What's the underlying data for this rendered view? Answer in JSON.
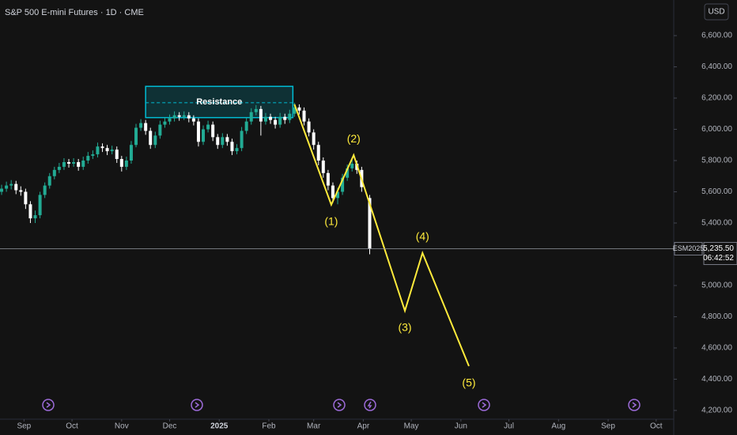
{
  "chart_data": {
    "type": "candlestick",
    "title": "S&P 500 E-mini Futures · 1D · CME",
    "currency": "USD",
    "symbol": "ESM2025",
    "countdown": "06:42:52",
    "last_price": 5235.5,
    "last_price_label": "5,235.50",
    "up_color": "#22ab94",
    "down_color": "#ffffff",
    "xlim": [
      -15,
      405
    ],
    "xticks": [
      {
        "value": 0,
        "label": "Sep"
      },
      {
        "value": 30,
        "label": "Oct"
      },
      {
        "value": 61,
        "label": "Nov"
      },
      {
        "value": 91,
        "label": "Dec"
      },
      {
        "value": 122,
        "label": "2025"
      },
      {
        "value": 153,
        "label": "Feb"
      },
      {
        "value": 181,
        "label": "Mar"
      },
      {
        "value": 212,
        "label": "Apr"
      },
      {
        "value": 242,
        "label": "May"
      },
      {
        "value": 273,
        "label": "Jun"
      },
      {
        "value": 303,
        "label": "Jul"
      },
      {
        "value": 334,
        "label": "Aug"
      },
      {
        "value": 365,
        "label": "Sep"
      },
      {
        "value": 395,
        "label": "Oct"
      }
    ],
    "ylim": [
      4144,
      6828
    ],
    "yticks": [
      {
        "value": 4200,
        "label": "4,200.00"
      },
      {
        "value": 4400,
        "label": "4,400.00"
      },
      {
        "value": 4600,
        "label": "4,600.00"
      },
      {
        "value": 4800,
        "label": "4,800.00"
      },
      {
        "value": 5000,
        "label": "5,000.00"
      },
      {
        "value": 5400,
        "label": "5,400.00"
      },
      {
        "value": 5600,
        "label": "5,600.00"
      },
      {
        "value": 5800,
        "label": "5,800.00"
      },
      {
        "value": 6000,
        "label": "6,000.00"
      },
      {
        "value": 6200,
        "label": "6,200.00"
      },
      {
        "value": 6400,
        "label": "6,400.00"
      },
      {
        "value": 6600,
        "label": "6,600.00"
      }
    ],
    "candles": {
      "x": [
        -14,
        -11,
        -8,
        -5,
        -2,
        1,
        4,
        7,
        10,
        13,
        16,
        19,
        22,
        25,
        28,
        31,
        34,
        37,
        40,
        43,
        46,
        49,
        52,
        55,
        58,
        61,
        64,
        67,
        70,
        73,
        76,
        79,
        82,
        85,
        88,
        91,
        94,
        97,
        100,
        103,
        106,
        109,
        112,
        115,
        118,
        121,
        124,
        127,
        130,
        133,
        136,
        139,
        142,
        145,
        148,
        151,
        154,
        157,
        160,
        163,
        166,
        169,
        172,
        175,
        178,
        181,
        184,
        187,
        190,
        193,
        196,
        199,
        202,
        205,
        208,
        211,
        216
      ],
      "open": [
        5600,
        5620,
        5640,
        5650,
        5610,
        5600,
        5520,
        5430,
        5450,
        5580,
        5640,
        5700,
        5740,
        5760,
        5790,
        5780,
        5790,
        5760,
        5800,
        5830,
        5840,
        5890,
        5880,
        5860,
        5870,
        5810,
        5760,
        5800,
        5900,
        6010,
        6040,
        5990,
        5900,
        5960,
        6030,
        6050,
        6070,
        6090,
        6080,
        6090,
        6070,
        6050,
        5920,
        6000,
        6030,
        5950,
        5900,
        5950,
        5920,
        5860,
        5880,
        5990,
        6050,
        6110,
        6130,
        6050,
        6080,
        6060,
        6030,
        6080,
        6060,
        6100,
        6140,
        6120,
        6050,
        5980,
        5900,
        5800,
        5720,
        5640,
        5560,
        5600,
        5690,
        5750,
        5780,
        5740,
        5560
      ],
      "high": [
        5645,
        5665,
        5675,
        5670,
        5635,
        5620,
        5540,
        5480,
        5600,
        5660,
        5720,
        5760,
        5785,
        5815,
        5810,
        5815,
        5810,
        5825,
        5855,
        5865,
        5915,
        5910,
        5900,
        5895,
        5890,
        5830,
        5825,
        5925,
        6035,
        6065,
        6060,
        6010,
        5985,
        6055,
        6075,
        6095,
        6115,
        6110,
        6115,
        6110,
        6090,
        6070,
        6025,
        6055,
        6050,
        5970,
        5975,
        5970,
        5940,
        5905,
        6015,
        6075,
        6135,
        6155,
        6150,
        6105,
        6100,
        6080,
        6105,
        6100,
        6125,
        6170,
        6160,
        6140,
        6070,
        6000,
        5920,
        5820,
        5740,
        5660,
        5625,
        5715,
        5775,
        5805,
        5800,
        5760,
        5580
      ],
      "low": [
        5580,
        5600,
        5615,
        5585,
        5575,
        5490,
        5400,
        5400,
        5430,
        5560,
        5620,
        5680,
        5720,
        5740,
        5755,
        5760,
        5735,
        5740,
        5780,
        5810,
        5820,
        5855,
        5835,
        5840,
        5785,
        5730,
        5740,
        5780,
        5885,
        5990,
        5965,
        5875,
        5880,
        5940,
        6010,
        6030,
        6050,
        6055,
        6060,
        6045,
        6025,
        5890,
        5900,
        5980,
        5925,
        5875,
        5880,
        5895,
        5835,
        5840,
        5860,
        5970,
        6030,
        6090,
        5960,
        6030,
        6035,
        6005,
        6010,
        6035,
        6040,
        6080,
        6095,
        6025,
        5955,
        5870,
        5770,
        5690,
        5610,
        5530,
        5520,
        5580,
        5670,
        5730,
        5715,
        5600,
        5200
      ],
      "close": [
        5620,
        5640,
        5650,
        5610,
        5600,
        5520,
        5430,
        5450,
        5580,
        5640,
        5700,
        5740,
        5760,
        5790,
        5780,
        5790,
        5760,
        5800,
        5830,
        5840,
        5890,
        5880,
        5860,
        5870,
        5810,
        5760,
        5800,
        5900,
        6010,
        6040,
        5990,
        5900,
        5960,
        6030,
        6050,
        6070,
        6090,
        6080,
        6090,
        6070,
        6050,
        5920,
        6000,
        6030,
        5950,
        5900,
        5950,
        5920,
        5860,
        5880,
        5990,
        6050,
        6110,
        6130,
        6050,
        6080,
        6060,
        6030,
        6080,
        6060,
        6100,
        6140,
        6120,
        6050,
        5980,
        5900,
        5800,
        5720,
        5640,
        5560,
        5600,
        5690,
        5750,
        5780,
        5740,
        5630,
        5235.5
      ]
    },
    "resistance": {
      "label": "Resistance",
      "x": [
        76,
        168
      ],
      "y": [
        6075,
        6275
      ],
      "level": 6170,
      "color": "#00bcd4"
    },
    "wave": {
      "color": "#ffeb3b",
      "x": [
        169,
        192,
        206,
        238,
        249,
        278
      ],
      "y": [
        6160,
        5517,
        5835,
        4838,
        5208,
        4484
      ],
      "labels": [
        null,
        "(1)",
        "(2)",
        "(3)",
        "(4)",
        "(5)"
      ]
    }
  }
}
